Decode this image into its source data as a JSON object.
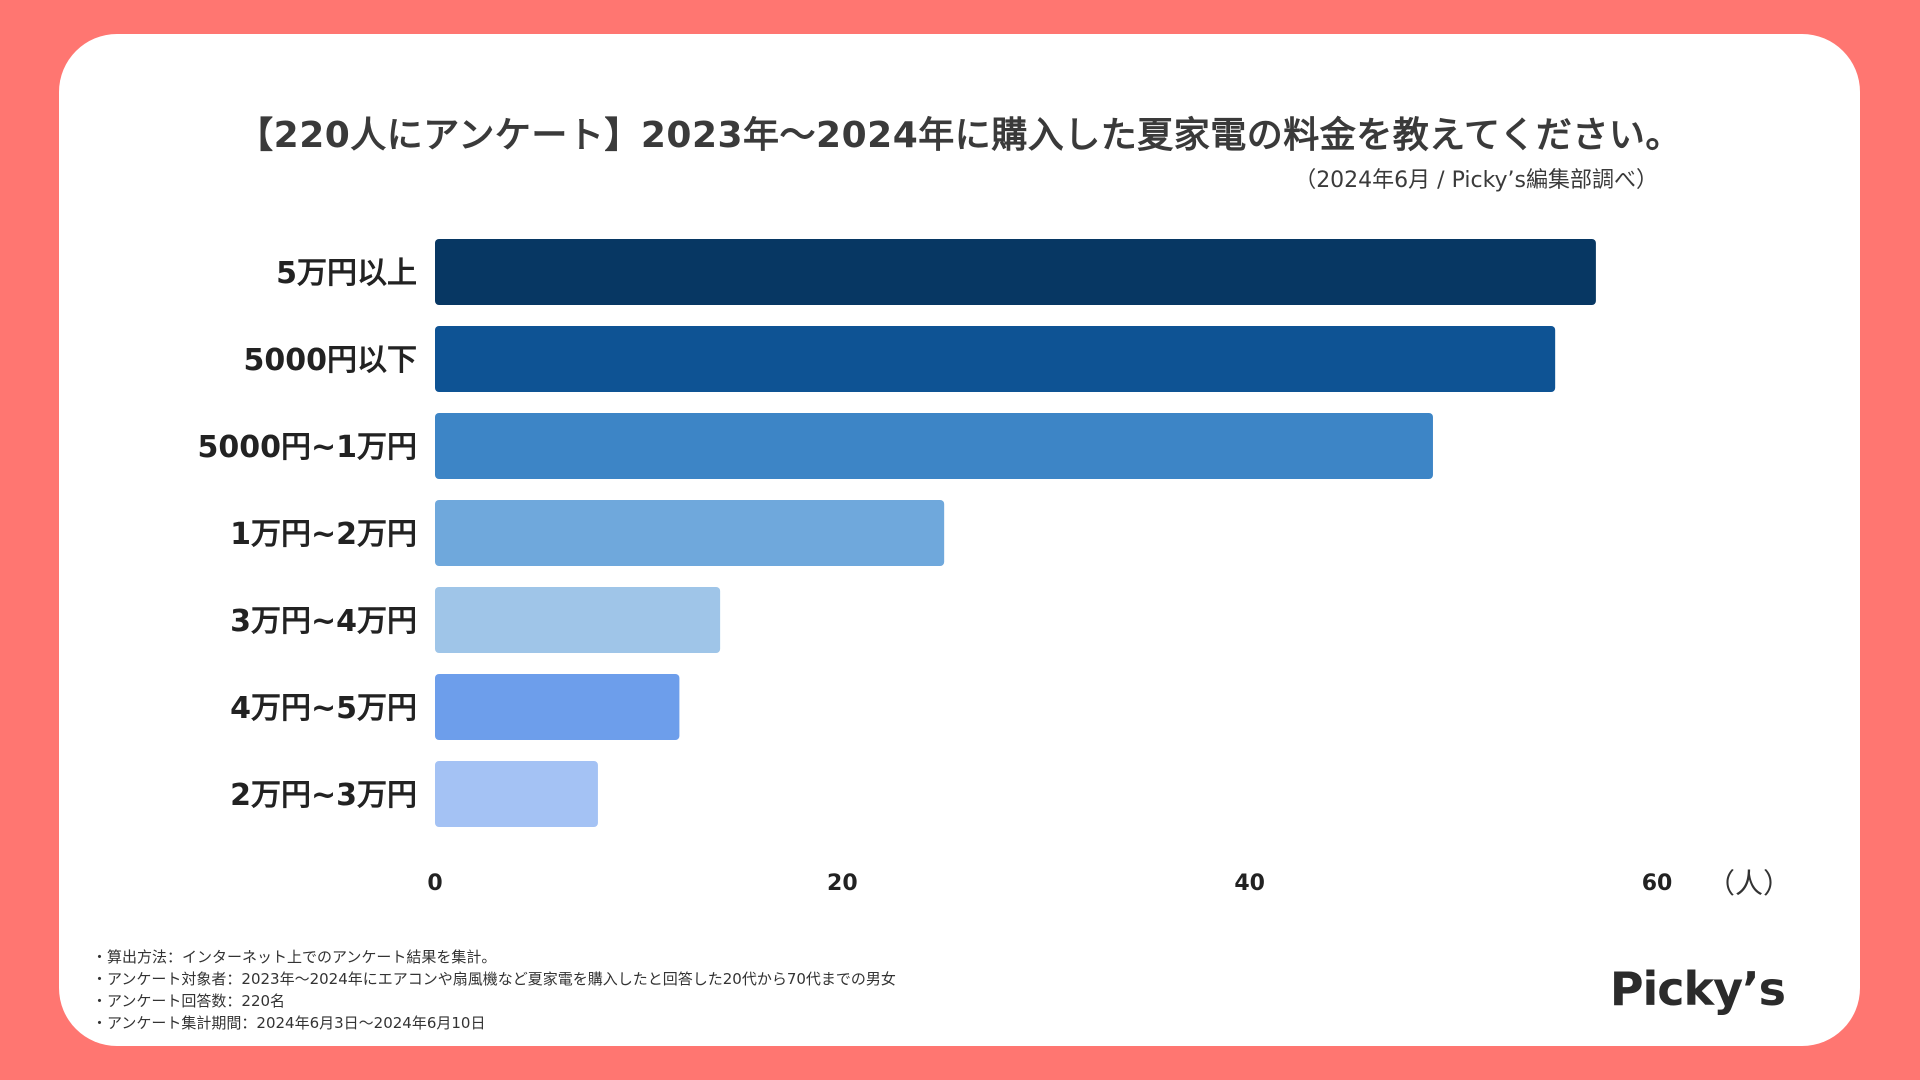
{
  "title": "【220人にアンケート】2023年〜2024年に購入した夏家電の料金を教えてください。",
  "source": "（2024年6月 / Picky’s編集部調べ）",
  "notes": [
    "・算出方法：インターネット上でのアンケート結果を集計。",
    "・アンケート対象者：2023年〜2024年にエアコンや扇風機など夏家電を購入したと回答した20代から70代までの男女",
    "・アンケート回答数：220名",
    "・アンケート集計期間：2024年6月3日〜2024年6月10日"
  ],
  "logo": "Picky’s",
  "chart_data": {
    "type": "bar",
    "orientation": "horizontal",
    "title": "【220人にアンケート】2023年〜2024年に購入した夏家電の料金を教えてください。",
    "xlabel": "（人）",
    "ylabel": "",
    "categories": [
      "5万円以上",
      "5000円以下",
      "5000円~1万円",
      "1万円~2万円",
      "3万円~4万円",
      "4万円~5万円",
      "2万円~3万円"
    ],
    "values": [
      57,
      55,
      49,
      25,
      14,
      12,
      8
    ],
    "colors": [
      "#073763",
      "#0e5394",
      "#3d85c6",
      "#6fa8dc",
      "#9fc5e8",
      "#6d9eeb",
      "#a4c2f4"
    ],
    "xlim": [
      0,
      60
    ],
    "xticks": [
      0,
      20,
      40,
      60
    ],
    "grid": false
  }
}
